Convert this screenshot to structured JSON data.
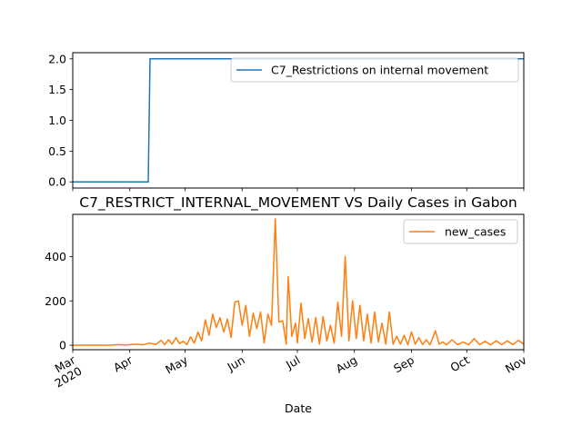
{
  "chart_data": [
    {
      "type": "line",
      "title": "",
      "xlabel": "",
      "ylabel": "",
      "ylim": [
        -0.1,
        2.1
      ],
      "yticks": [
        "0.0",
        "0.5",
        "1.0",
        "1.5",
        "2.0"
      ],
      "series": [
        {
          "name": "C7_Restrictions on internal movement",
          "color": "#1f77b4",
          "points": [
            {
              "x": "2020-03-01",
              "y": 0
            },
            {
              "x": "2020-04-11",
              "y": 0
            },
            {
              "x": "2020-04-12",
              "y": 2
            },
            {
              "x": "2020-11-01",
              "y": 2
            }
          ]
        }
      ],
      "legend": "top-right",
      "grid": false
    },
    {
      "type": "line",
      "title": "C7_RESTRICT_INTERNAL_MOVEMENT VS Daily Cases in Gabon",
      "xlabel": "Date",
      "ylabel": "",
      "ylim": [
        -20,
        590
      ],
      "yticks": [
        "0",
        "200",
        "400"
      ],
      "xticks": [
        "Mar\n2020",
        "Apr",
        "May",
        "Jun",
        "Jul",
        "Aug",
        "Sep",
        "Oct",
        "Nov"
      ],
      "legend": "top-right",
      "grid": false,
      "series": [
        {
          "name": "new_cases",
          "color": "#ff7f0e",
          "points": [
            {
              "x": "2020-03-01",
              "y": 0
            },
            {
              "x": "2020-03-14",
              "y": 1
            },
            {
              "x": "2020-03-20",
              "y": 0
            },
            {
              "x": "2020-03-25",
              "y": 3
            },
            {
              "x": "2020-03-30",
              "y": 1
            },
            {
              "x": "2020-04-04",
              "y": 5
            },
            {
              "x": "2020-04-08",
              "y": 2
            },
            {
              "x": "2020-04-12",
              "y": 10
            },
            {
              "x": "2020-04-15",
              "y": 3
            },
            {
              "x": "2020-04-18",
              "y": 22
            },
            {
              "x": "2020-04-20",
              "y": 2
            },
            {
              "x": "2020-04-22",
              "y": 25
            },
            {
              "x": "2020-04-24",
              "y": 5
            },
            {
              "x": "2020-04-26",
              "y": 34
            },
            {
              "x": "2020-04-28",
              "y": 8
            },
            {
              "x": "2020-04-30",
              "y": 18
            },
            {
              "x": "2020-05-02",
              "y": 3
            },
            {
              "x": "2020-05-04",
              "y": 38
            },
            {
              "x": "2020-05-06",
              "y": 10
            },
            {
              "x": "2020-05-08",
              "y": 60
            },
            {
              "x": "2020-05-10",
              "y": 20
            },
            {
              "x": "2020-05-12",
              "y": 115
            },
            {
              "x": "2020-05-14",
              "y": 45
            },
            {
              "x": "2020-05-16",
              "y": 140
            },
            {
              "x": "2020-05-18",
              "y": 80
            },
            {
              "x": "2020-05-20",
              "y": 125
            },
            {
              "x": "2020-05-22",
              "y": 60
            },
            {
              "x": "2020-05-24",
              "y": 118
            },
            {
              "x": "2020-05-26",
              "y": 35
            },
            {
              "x": "2020-05-28",
              "y": 195
            },
            {
              "x": "2020-05-30",
              "y": 200
            },
            {
              "x": "2020-06-01",
              "y": 90
            },
            {
              "x": "2020-06-03",
              "y": 180
            },
            {
              "x": "2020-06-05",
              "y": 40
            },
            {
              "x": "2020-06-07",
              "y": 145
            },
            {
              "x": "2020-06-09",
              "y": 75
            },
            {
              "x": "2020-06-11",
              "y": 150
            },
            {
              "x": "2020-06-13",
              "y": 10
            },
            {
              "x": "2020-06-15",
              "y": 140
            },
            {
              "x": "2020-06-17",
              "y": 90
            },
            {
              "x": "2020-06-19",
              "y": 570
            },
            {
              "x": "2020-06-21",
              "y": 105
            },
            {
              "x": "2020-06-23",
              "y": 110
            },
            {
              "x": "2020-06-25",
              "y": 5
            },
            {
              "x": "2020-06-26",
              "y": 310
            },
            {
              "x": "2020-06-28",
              "y": 40
            },
            {
              "x": "2020-06-30",
              "y": 100
            },
            {
              "x": "2020-07-01",
              "y": 10
            },
            {
              "x": "2020-07-03",
              "y": 190
            },
            {
              "x": "2020-07-05",
              "y": 30
            },
            {
              "x": "2020-07-07",
              "y": 120
            },
            {
              "x": "2020-07-09",
              "y": 15
            },
            {
              "x": "2020-07-11",
              "y": 125
            },
            {
              "x": "2020-07-13",
              "y": 5
            },
            {
              "x": "2020-07-15",
              "y": 130
            },
            {
              "x": "2020-07-17",
              "y": 20
            },
            {
              "x": "2020-07-19",
              "y": 90
            },
            {
              "x": "2020-07-21",
              "y": 10
            },
            {
              "x": "2020-07-23",
              "y": 195
            },
            {
              "x": "2020-07-25",
              "y": 40
            },
            {
              "x": "2020-07-27",
              "y": 400
            },
            {
              "x": "2020-07-29",
              "y": 20
            },
            {
              "x": "2020-07-31",
              "y": 200
            },
            {
              "x": "2020-08-02",
              "y": 30
            },
            {
              "x": "2020-08-04",
              "y": 180
            },
            {
              "x": "2020-08-06",
              "y": 20
            },
            {
              "x": "2020-08-08",
              "y": 140
            },
            {
              "x": "2020-08-10",
              "y": 10
            },
            {
              "x": "2020-08-12",
              "y": 150
            },
            {
              "x": "2020-08-14",
              "y": 15
            },
            {
              "x": "2020-08-16",
              "y": 100
            },
            {
              "x": "2020-08-18",
              "y": 5
            },
            {
              "x": "2020-08-20",
              "y": 150
            },
            {
              "x": "2020-08-22",
              "y": 5
            },
            {
              "x": "2020-08-24",
              "y": 40
            },
            {
              "x": "2020-08-26",
              "y": 5
            },
            {
              "x": "2020-08-28",
              "y": 45
            },
            {
              "x": "2020-08-30",
              "y": 2
            },
            {
              "x": "2020-09-01",
              "y": 60
            },
            {
              "x": "2020-09-03",
              "y": 5
            },
            {
              "x": "2020-09-05",
              "y": 35
            },
            {
              "x": "2020-09-07",
              "y": 3
            },
            {
              "x": "2020-09-09",
              "y": 25
            },
            {
              "x": "2020-09-11",
              "y": 2
            },
            {
              "x": "2020-09-14",
              "y": 65
            },
            {
              "x": "2020-09-16",
              "y": 5
            },
            {
              "x": "2020-09-18",
              "y": 15
            },
            {
              "x": "2020-09-20",
              "y": 2
            },
            {
              "x": "2020-09-23",
              "y": 25
            },
            {
              "x": "2020-09-26",
              "y": 3
            },
            {
              "x": "2020-09-29",
              "y": 15
            },
            {
              "x": "2020-10-02",
              "y": 2
            },
            {
              "x": "2020-10-05",
              "y": 30
            },
            {
              "x": "2020-10-08",
              "y": 3
            },
            {
              "x": "2020-10-11",
              "y": 18
            },
            {
              "x": "2020-10-14",
              "y": 2
            },
            {
              "x": "2020-10-17",
              "y": 20
            },
            {
              "x": "2020-10-20",
              "y": 3
            },
            {
              "x": "2020-10-23",
              "y": 20
            },
            {
              "x": "2020-10-26",
              "y": 3
            },
            {
              "x": "2020-10-29",
              "y": 22
            },
            {
              "x": "2020-11-01",
              "y": 5
            }
          ]
        }
      ]
    }
  ]
}
